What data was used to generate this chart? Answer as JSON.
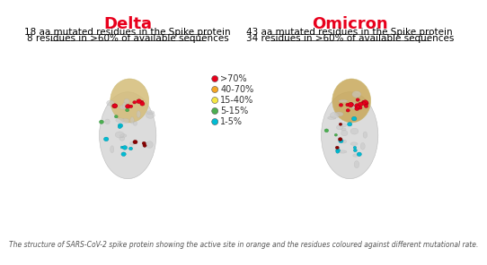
{
  "title_delta": "Delta",
  "title_omicron": "Omicron",
  "title_color": "#e8001c",
  "title_fontsize": 13,
  "text_delta_line1": "18 aa mutated residues in the Spike protein",
  "text_delta_line2": "8 residues in >60% of available sequences",
  "text_omicron_line1": "43 aa mutated residues in the Spike protein",
  "text_omicron_line2": "34 residues in >60% of available sequences",
  "text_fontsize": 7.5,
  "legend_labels": [
    ">70%",
    "40-70%",
    "15-40%",
    "5-15%",
    "1-5%"
  ],
  "legend_colors": [
    "#e8001c",
    "#f5a623",
    "#f5e642",
    "#4caf50",
    "#00bcd4"
  ],
  "legend_fontsize": 7,
  "caption": "The structure of SARS-CoV-2 spike protein showing the active site in orange and the residues coloured against different mutational rate.",
  "caption_fontsize": 5.5,
  "bg_color": "#ffffff"
}
